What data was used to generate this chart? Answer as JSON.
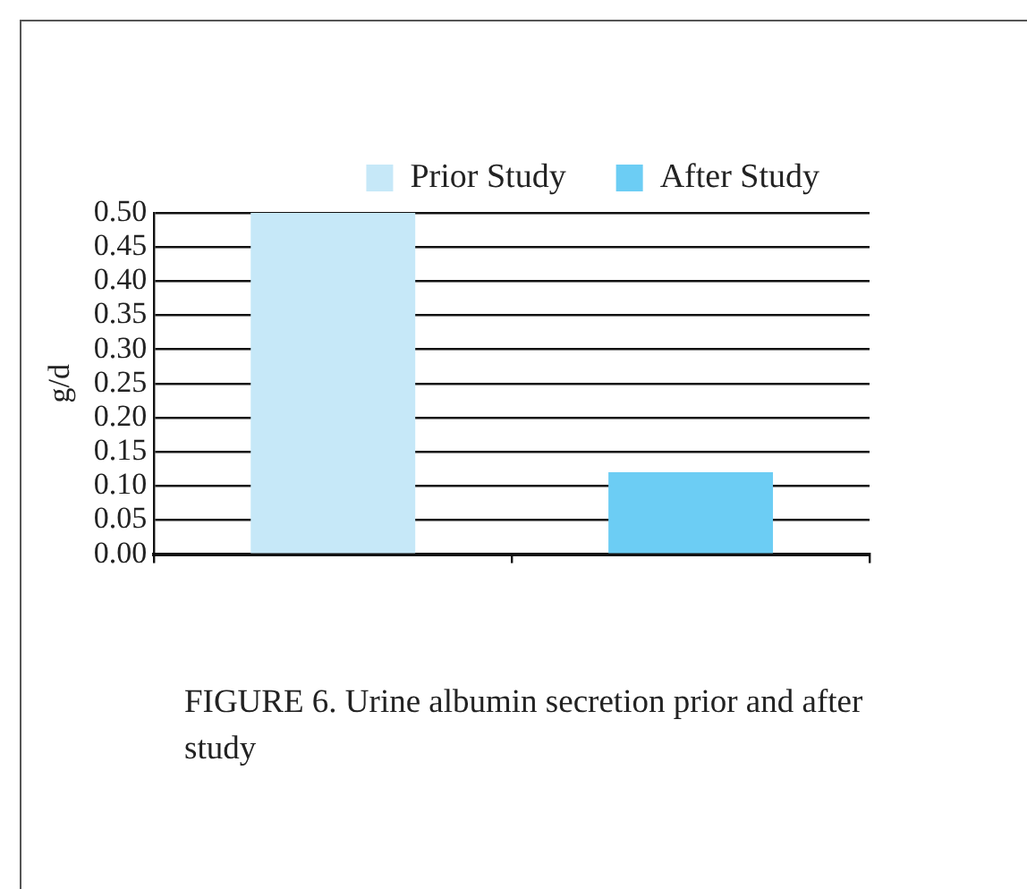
{
  "chart_data": {
    "type": "bar",
    "ylabel": "g/d",
    "categories": [
      null,
      null
    ],
    "series": [
      {
        "name": "Prior Study",
        "color": "#c6e8f8",
        "values": [
          0.5,
          null
        ]
      },
      {
        "name": "After Study",
        "color": "#6ccdf4",
        "values": [
          null,
          0.12
        ]
      }
    ],
    "ylim": [
      0,
      0.5
    ],
    "yticks": [
      {
        "value": 0,
        "label": "0.00"
      },
      {
        "value": 0.05,
        "label": "0.05"
      },
      {
        "value": 0.1,
        "label": "0.10"
      },
      {
        "value": 0.15,
        "label": "0.15"
      },
      {
        "value": 0.2,
        "label": "0.20"
      },
      {
        "value": 0.25,
        "label": "0.25"
      },
      {
        "value": 0.3,
        "label": "0.30"
      },
      {
        "value": 0.35,
        "label": "0.35"
      },
      {
        "value": 0.4,
        "label": "0.40"
      },
      {
        "value": 0.45,
        "label": "0.45"
      },
      {
        "value": 0.5,
        "label": "0.50"
      }
    ],
    "grid": "y",
    "legend": "top right",
    "annotations": [
      "FIGURE 6. Urine albumin secretion prior and after study"
    ]
  }
}
